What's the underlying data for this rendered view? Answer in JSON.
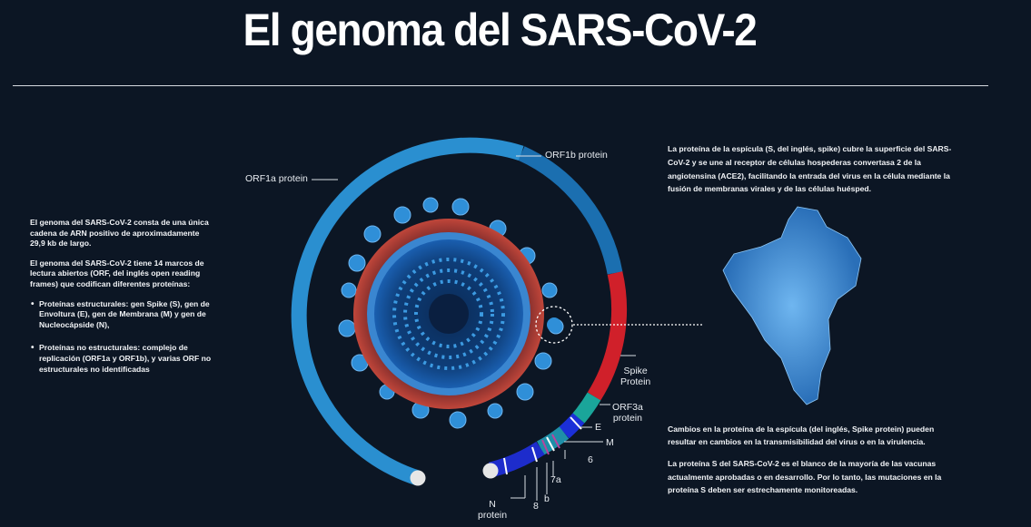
{
  "header": {
    "title": "El genoma del SARS-CoV-2"
  },
  "left": {
    "p1": "El genoma del SARS-CoV-2 consta de una única cadena de ARN positivo de aproximadamente 29,9 kb de largo.",
    "p2": "El genoma del SARS-CoV-2 tiene 14 marcos de lectura abiertos (ORF, del inglés open reading frames) que codifican diferentes proteínas:",
    "bullets": [
      "Proteínas estructurales: gen Spike (S), gen de Envoltura (E), gen de Membrana (M) y gen de Nucleocápside (N),",
      "Proteínas no estructurales: complejo de replicación (ORF1a y ORF1b), y varias ORF no estructurales no identificadas"
    ]
  },
  "right": {
    "top": "La proteína de la espícula (S, del inglés, spike) cubre la superficie del SARS-CoV-2 y se une al receptor de células hospederas convertasa 2 de la angiotensina (ACE2), facilitando la entrada del virus en la célula mediante la fusión de membranas virales y de las células huésped.",
    "bottom1": "Cambios en la proteína de la espícula  (del inglés, Spike protein) pueden resultar en cambios en la transmisibilidad del virus o en la virulencia.",
    "bottom2": "La proteína S del SARS-CoV-2 es el blanco de la mayoría de las vacunas actualmente aprobadas o en desarrollo. Por lo tanto, las mutaciones en la proteína S deben ser estrechamente monitoreadas."
  },
  "labels": {
    "orf1a": "ORF1a protein",
    "orf1b": "ORF1b protein",
    "spike_1": "Spike",
    "spike_2": "Protein",
    "orf3a_1": "ORF3a",
    "orf3a_2": "protein",
    "e": "E",
    "m": "M",
    "six": "6",
    "seven_a": "7a",
    "b": "b",
    "eight": "8",
    "n_1": "N",
    "n_2": "protein"
  },
  "colors": {
    "background": "#0c1624",
    "orf1a": "#2a8fd0",
    "orf1b": "#1b6fb0",
    "spike": "#d0202a",
    "orf3a": "#1aa59a",
    "e": "#1b2fd8",
    "m": "#1e8fa8",
    "n": "#1d2ccc",
    "virus": "#2f8fd8",
    "virus_membrane": "#b03a2e"
  }
}
